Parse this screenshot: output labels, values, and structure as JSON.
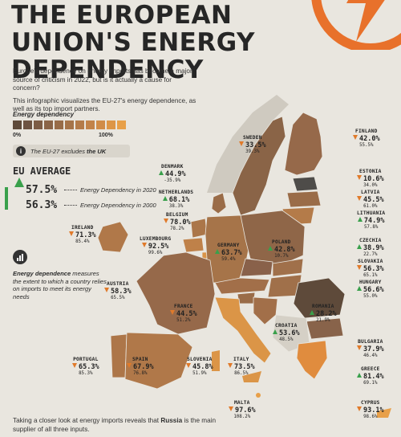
{
  "title": "THE EUROPEAN UNION'S ENERGY DEPENDENCY",
  "intro": {
    "p1": "Europe's dependence on energy imports has become a major source of criticism in 2022, but is it actually a cause for concern?",
    "p2": "This infographic visualizes the EU-27's energy dependence, as well as its top import partners."
  },
  "legend": {
    "label": "Energy dependency",
    "min": "0%",
    "max": "100%",
    "colors": [
      "#5e4a3a",
      "#6d5342",
      "#7c5c45",
      "#8a6447",
      "#986c48",
      "#a67449",
      "#b47b49",
      "#c28349",
      "#d08c48",
      "#dd9647",
      "#e8a049"
    ]
  },
  "note": {
    "icon": "info-icon",
    "text_prefix": "The EU-27 excludes ",
    "text_bold": "the UK"
  },
  "eu_average": {
    "title": "EU AVERAGE",
    "v2020": "57.5%",
    "label2020": "Energy Dependency in 2020",
    "v2000": "56.3%",
    "label2000": "Energy Dependency in 2000"
  },
  "definition": {
    "bold": "Energy dependence",
    "rest": " measures the extent to which a country relies on imports to meet its energy needs"
  },
  "footer": {
    "text_prefix": "Taking a closer look at energy imports reveals that ",
    "bold": "Russia",
    "text_suffix": " is the main supplier of all three inputs."
  },
  "colors": {
    "up": "#39a04b",
    "down": "#e07a2a",
    "accent": "#e8712b",
    "background": "#e9e6df"
  },
  "chart_data": {
    "type": "choropleth-map",
    "title": "THE EUROPEAN UNION'S ENERGY DEPENDENCY",
    "value_label": "Energy dependency",
    "range": [
      0,
      100
    ],
    "countries": [
      {
        "name": "SWEDEN",
        "y2020": "33.5%",
        "y2000": "39.3%",
        "trend": "down"
      },
      {
        "name": "FINLAND",
        "y2020": "42.0%",
        "y2000": "55.5%",
        "trend": "down"
      },
      {
        "name": "DENMARK",
        "y2020": "44.9%",
        "y2000": "-35.9%",
        "trend": "up"
      },
      {
        "name": "ESTONIA",
        "y2020": "10.6%",
        "y2000": "34.0%",
        "trend": "down"
      },
      {
        "name": "NETHERLANDS",
        "y2020": "68.1%",
        "y2000": "38.3%",
        "trend": "up"
      },
      {
        "name": "LATVIA",
        "y2020": "45.5%",
        "y2000": "61.0%",
        "trend": "down"
      },
      {
        "name": "BELGIUM",
        "y2020": "78.0%",
        "y2000": "78.2%",
        "trend": "down"
      },
      {
        "name": "LITHUANIA",
        "y2020": "74.9%",
        "y2000": "57.8%",
        "trend": "up"
      },
      {
        "name": "IRELAND",
        "y2020": "71.3%",
        "y2000": "85.4%",
        "trend": "down"
      },
      {
        "name": "LUXEMBOURG",
        "y2020": "92.5%",
        "y2000": "99.6%",
        "trend": "down"
      },
      {
        "name": "GERMANY",
        "y2020": "63.7%",
        "y2000": "59.4%",
        "trend": "up"
      },
      {
        "name": "POLAND",
        "y2020": "42.8%",
        "y2000": "10.7%",
        "trend": "up"
      },
      {
        "name": "CZECHIA",
        "y2020": "38.9%",
        "y2000": "22.7%",
        "trend": "up"
      },
      {
        "name": "SLOVAKIA",
        "y2020": "56.3%",
        "y2000": "65.1%",
        "trend": "down"
      },
      {
        "name": "AUSTRIA",
        "y2020": "58.3%",
        "y2000": "65.5%",
        "trend": "down"
      },
      {
        "name": "HUNGARY",
        "y2020": "56.6%",
        "y2000": "55.0%",
        "trend": "up"
      },
      {
        "name": "FRANCE",
        "y2020": "44.5%",
        "y2000": "51.2%",
        "trend": "down"
      },
      {
        "name": "ROMANIA",
        "y2020": "28.2%",
        "y2000": "21.9%",
        "trend": "up"
      },
      {
        "name": "CROATIA",
        "y2020": "53.6%",
        "y2000": "48.5%",
        "trend": "up"
      },
      {
        "name": "BULGARIA",
        "y2020": "37.9%",
        "y2000": "46.4%",
        "trend": "down"
      },
      {
        "name": "PORTUGAL",
        "y2020": "65.3%",
        "y2000": "85.3%",
        "trend": "down"
      },
      {
        "name": "SPAIN",
        "y2020": "67.9%",
        "y2000": "76.8%",
        "trend": "down"
      },
      {
        "name": "SLOVENIA",
        "y2020": "45.8%",
        "y2000": "51.9%",
        "trend": "down"
      },
      {
        "name": "ITALY",
        "y2020": "73.5%",
        "y2000": "86.5%",
        "trend": "down"
      },
      {
        "name": "GREECE",
        "y2020": "81.4%",
        "y2000": "69.1%",
        "trend": "up"
      },
      {
        "name": "MALTA",
        "y2020": "97.6%",
        "y2000": "108.2%",
        "trend": "down"
      },
      {
        "name": "CYPRUS",
        "y2020": "93.1%",
        "y2000": "98.6%",
        "trend": "down"
      }
    ]
  }
}
